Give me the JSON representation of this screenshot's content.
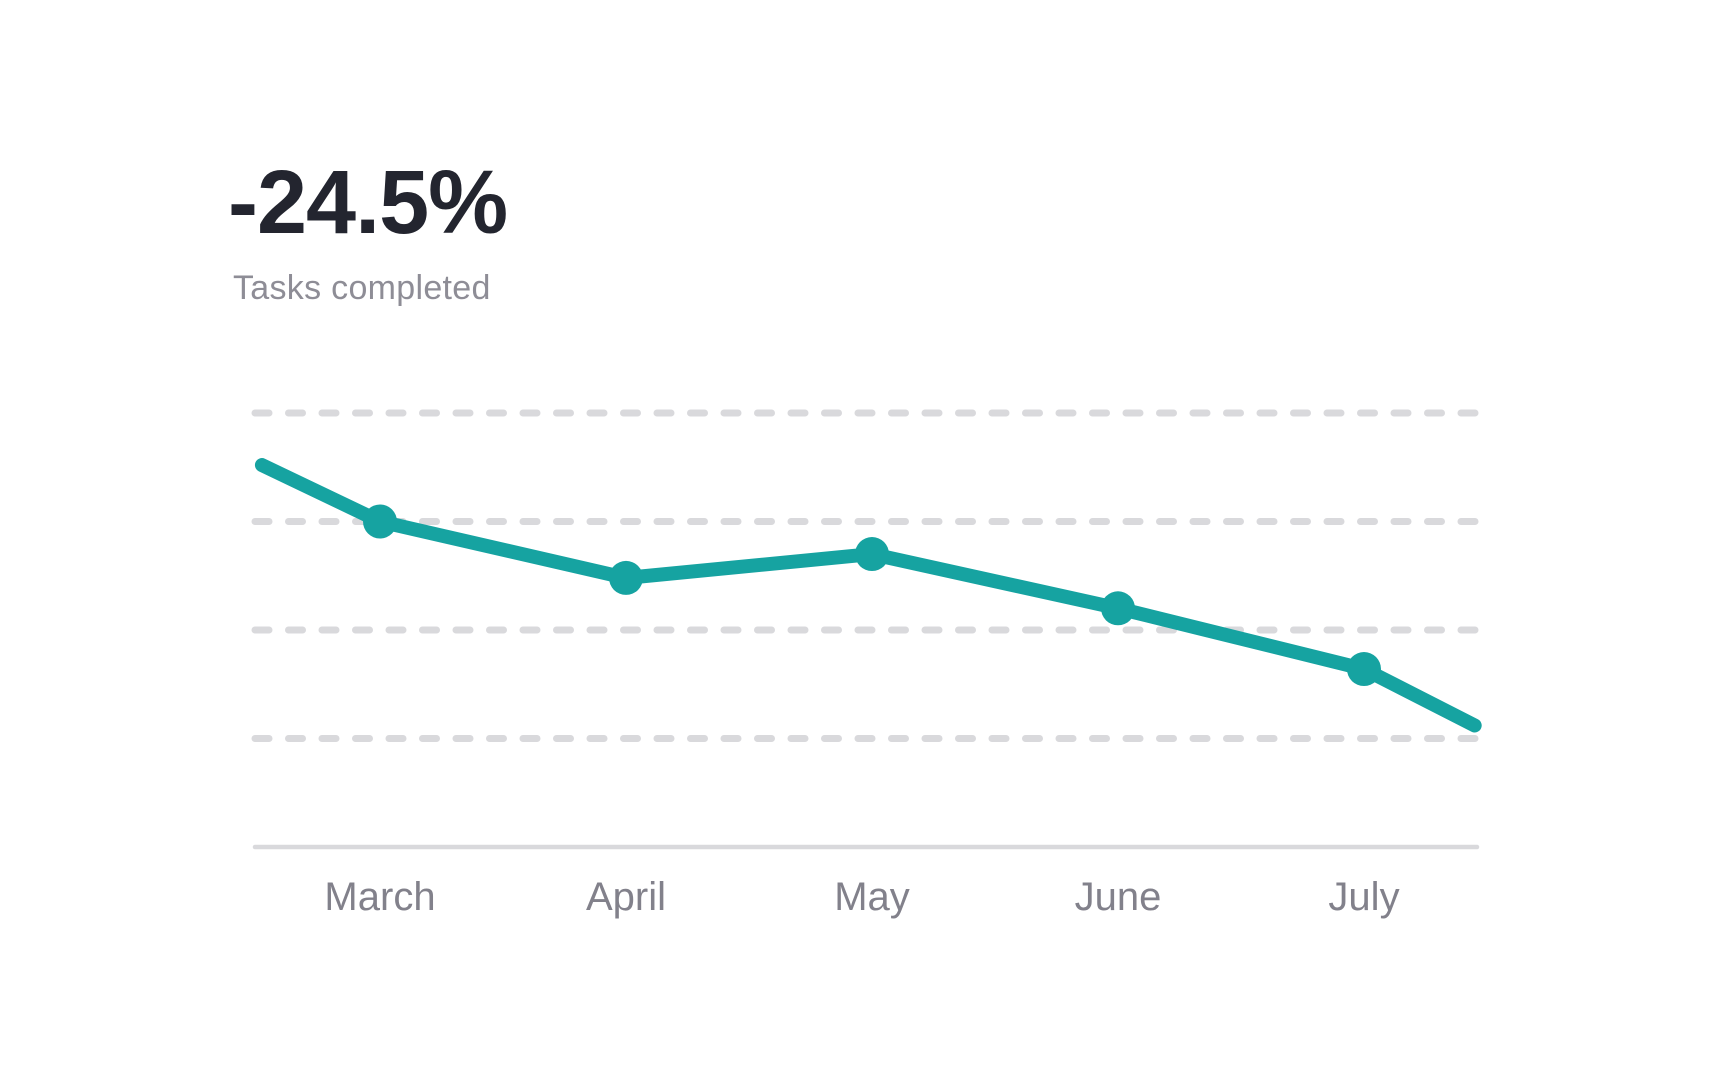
{
  "chart_data": {
    "type": "line",
    "title": "-24.5%",
    "subtitle": "Tasks completed",
    "categories": [
      "March",
      "April",
      "May",
      "June",
      "July"
    ],
    "values": [
      75,
      62,
      67.5,
      55,
      41
    ],
    "edge_points": {
      "start": {
        "x": 0.52,
        "value": 88
      },
      "end": {
        "x": 5.45,
        "value": 28
      }
    },
    "y_axis": {
      "labels_visible": false,
      "min": 0,
      "max": 100,
      "gridline_values": [
        100,
        75,
        50,
        25
      ],
      "gridline_style": "dashed",
      "baseline_value": 0
    },
    "legend": "none",
    "grid": "horizontal-only",
    "colors": {
      "line": "#16a3a1",
      "point": "#16a3a1",
      "gridline": "#d9d9dc",
      "axis_line": "#d9d9dc",
      "axis_label": "#82818b",
      "title": "#23252f",
      "subtitle": "#8e8d96"
    }
  }
}
